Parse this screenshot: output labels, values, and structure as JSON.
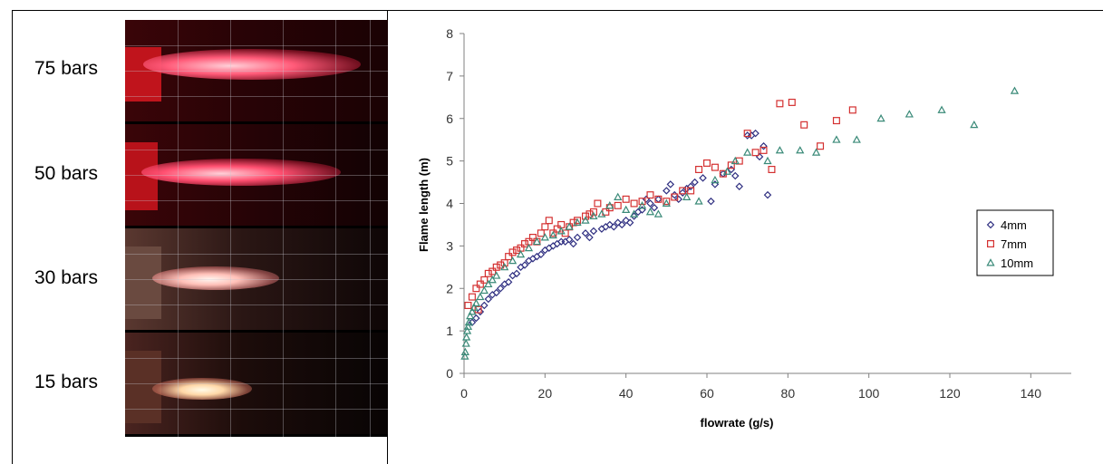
{
  "photos": {
    "labels": [
      "75 bars",
      "50 bars",
      "30 bars",
      "15 bars"
    ]
  },
  "colors": {
    "series_4mm": "#2e2e80",
    "series_7mm": "#d43030",
    "series_10mm": "#3a8a78",
    "axis": "#808080"
  },
  "chart_data": {
    "type": "scatter",
    "title": "",
    "xlabel": "flowrate (g/s)",
    "ylabel": "Flame length (m)",
    "xlim": [
      0,
      150
    ],
    "ylim": [
      0,
      8
    ],
    "xticks": [
      0,
      20,
      40,
      60,
      80,
      100,
      120,
      140
    ],
    "yticks": [
      0,
      1,
      2,
      3,
      4,
      5,
      6,
      7,
      8
    ],
    "grid": false,
    "legend": "right",
    "series": [
      {
        "name": "4mm",
        "marker": "diamond",
        "points": [
          [
            2,
            1.2
          ],
          [
            3,
            1.3
          ],
          [
            4,
            1.45
          ],
          [
            5,
            1.6
          ],
          [
            6,
            1.75
          ],
          [
            7,
            1.85
          ],
          [
            8,
            1.9
          ],
          [
            9,
            2.0
          ],
          [
            10,
            2.1
          ],
          [
            11,
            2.15
          ],
          [
            12,
            2.3
          ],
          [
            13,
            2.35
          ],
          [
            14,
            2.5
          ],
          [
            15,
            2.55
          ],
          [
            16,
            2.65
          ],
          [
            17,
            2.7
          ],
          [
            18,
            2.75
          ],
          [
            19,
            2.8
          ],
          [
            20,
            2.9
          ],
          [
            21,
            2.95
          ],
          [
            22,
            3.0
          ],
          [
            23,
            3.05
          ],
          [
            24,
            3.1
          ],
          [
            25,
            3.1
          ],
          [
            26,
            3.15
          ],
          [
            27,
            3.05
          ],
          [
            28,
            3.2
          ],
          [
            30,
            3.3
          ],
          [
            31,
            3.2
          ],
          [
            32,
            3.35
          ],
          [
            34,
            3.4
          ],
          [
            35,
            3.45
          ],
          [
            36,
            3.5
          ],
          [
            37,
            3.45
          ],
          [
            38,
            3.55
          ],
          [
            39,
            3.5
          ],
          [
            40,
            3.6
          ],
          [
            41,
            3.55
          ],
          [
            42,
            3.7
          ],
          [
            43,
            3.8
          ],
          [
            44,
            3.85
          ],
          [
            45,
            4.1
          ],
          [
            46,
            4.0
          ],
          [
            47,
            3.9
          ],
          [
            48,
            4.1
          ],
          [
            50,
            4.3
          ],
          [
            51,
            4.45
          ],
          [
            52,
            4.2
          ],
          [
            53,
            4.1
          ],
          [
            54,
            4.25
          ],
          [
            55,
            4.35
          ],
          [
            56,
            4.4
          ],
          [
            57,
            4.5
          ],
          [
            59,
            4.6
          ],
          [
            61,
            4.05
          ],
          [
            62,
            4.45
          ],
          [
            64,
            4.7
          ],
          [
            66,
            4.8
          ],
          [
            67,
            4.65
          ],
          [
            68,
            4.4
          ],
          [
            70,
            5.6
          ],
          [
            71,
            5.6
          ],
          [
            72,
            5.65
          ],
          [
            73,
            5.1
          ],
          [
            74,
            5.35
          ],
          [
            75,
            4.2
          ]
        ]
      },
      {
        "name": "7mm",
        "marker": "square",
        "points": [
          [
            1,
            1.6
          ],
          [
            2,
            1.8
          ],
          [
            3,
            2.0
          ],
          [
            3.5,
            1.5
          ],
          [
            4,
            2.1
          ],
          [
            5,
            2.2
          ],
          [
            6,
            2.35
          ],
          [
            7,
            2.4
          ],
          [
            8,
            2.5
          ],
          [
            9,
            2.55
          ],
          [
            10,
            2.6
          ],
          [
            11,
            2.75
          ],
          [
            12,
            2.85
          ],
          [
            13,
            2.9
          ],
          [
            14,
            2.95
          ],
          [
            15,
            3.05
          ],
          [
            16,
            3.1
          ],
          [
            17,
            3.2
          ],
          [
            18,
            3.1
          ],
          [
            19,
            3.3
          ],
          [
            20,
            3.45
          ],
          [
            21,
            3.6
          ],
          [
            22,
            3.3
          ],
          [
            23,
            3.4
          ],
          [
            24,
            3.5
          ],
          [
            25,
            3.3
          ],
          [
            26,
            3.45
          ],
          [
            27,
            3.55
          ],
          [
            28,
            3.6
          ],
          [
            30,
            3.7
          ],
          [
            31,
            3.75
          ],
          [
            32,
            3.8
          ],
          [
            33,
            4.0
          ],
          [
            35,
            3.8
          ],
          [
            36,
            3.9
          ],
          [
            38,
            3.95
          ],
          [
            40,
            4.1
          ],
          [
            42,
            4.0
          ],
          [
            44,
            4.05
          ],
          [
            46,
            4.2
          ],
          [
            48,
            4.1
          ],
          [
            50,
            4.05
          ],
          [
            52,
            4.15
          ],
          [
            54,
            4.3
          ],
          [
            56,
            4.3
          ],
          [
            58,
            4.8
          ],
          [
            60,
            4.95
          ],
          [
            62,
            4.85
          ],
          [
            64,
            4.7
          ],
          [
            66,
            4.9
          ],
          [
            68,
            5.0
          ],
          [
            70,
            5.65
          ],
          [
            72,
            5.2
          ],
          [
            74,
            5.25
          ],
          [
            76,
            4.8
          ],
          [
            78,
            6.35
          ],
          [
            81,
            6.38
          ],
          [
            84,
            5.85
          ],
          [
            88,
            5.35
          ],
          [
            92,
            5.95
          ],
          [
            96,
            6.2
          ]
        ]
      },
      {
        "name": "10mm",
        "marker": "triangle",
        "points": [
          [
            0.2,
            0.4
          ],
          [
            0.3,
            0.5
          ],
          [
            0.5,
            0.7
          ],
          [
            0.6,
            0.85
          ],
          [
            0.8,
            1.0
          ],
          [
            1,
            1.1
          ],
          [
            1.2,
            1.2
          ],
          [
            1.5,
            1.35
          ],
          [
            2,
            1.45
          ],
          [
            2.5,
            1.55
          ],
          [
            3,
            1.65
          ],
          [
            4,
            1.8
          ],
          [
            5,
            1.95
          ],
          [
            6,
            2.1
          ],
          [
            7,
            2.2
          ],
          [
            8,
            2.3
          ],
          [
            10,
            2.5
          ],
          [
            12,
            2.65
          ],
          [
            14,
            2.8
          ],
          [
            16,
            2.95
          ],
          [
            18,
            3.1
          ],
          [
            20,
            3.2
          ],
          [
            22,
            3.25
          ],
          [
            24,
            3.35
          ],
          [
            26,
            3.45
          ],
          [
            28,
            3.55
          ],
          [
            30,
            3.6
          ],
          [
            32,
            3.7
          ],
          [
            34,
            3.75
          ],
          [
            36,
            3.95
          ],
          [
            38,
            4.15
          ],
          [
            40,
            3.85
          ],
          [
            42,
            3.75
          ],
          [
            44,
            3.95
          ],
          [
            46,
            3.8
          ],
          [
            48,
            3.75
          ],
          [
            50,
            4.0
          ],
          [
            55,
            4.15
          ],
          [
            58,
            4.05
          ],
          [
            62,
            4.55
          ],
          [
            65,
            4.75
          ],
          [
            67,
            5.0
          ],
          [
            70,
            5.2
          ],
          [
            75,
            5.0
          ],
          [
            78,
            5.25
          ],
          [
            83,
            5.25
          ],
          [
            87,
            5.2
          ],
          [
            92,
            5.5
          ],
          [
            97,
            5.5
          ],
          [
            103,
            6.0
          ],
          [
            110,
            6.1
          ],
          [
            118,
            6.2
          ],
          [
            126,
            5.85
          ],
          [
            136,
            6.65
          ]
        ]
      }
    ]
  }
}
